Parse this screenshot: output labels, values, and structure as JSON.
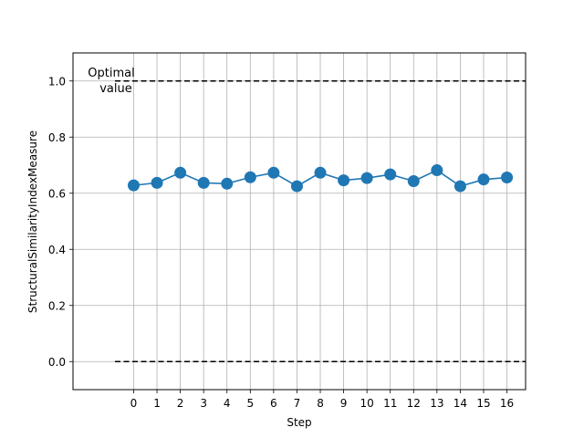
{
  "chart_data": {
    "type": "line",
    "title": "",
    "xlabel": "Step",
    "ylabel": "StructuralSimilarityIndexMeasure",
    "x": [
      0,
      1,
      2,
      3,
      4,
      5,
      6,
      7,
      8,
      9,
      10,
      11,
      12,
      13,
      14,
      15,
      16
    ],
    "series": [
      {
        "values": [
          0.628,
          0.637,
          0.673,
          0.637,
          0.634,
          0.657,
          0.673,
          0.625,
          0.673,
          0.646,
          0.654,
          0.667,
          0.643,
          0.682,
          0.625,
          0.649,
          0.656
        ],
        "color": "#1f77b4",
        "marker": "circle"
      }
    ],
    "xticks": [
      "0",
      "1",
      "2",
      "3",
      "4",
      "5",
      "6",
      "7",
      "8",
      "9",
      "10",
      "11",
      "12",
      "13",
      "14",
      "15",
      "16"
    ],
    "yticks": [
      "0.0",
      "0.2",
      "0.4",
      "0.6",
      "0.8",
      "1.0"
    ],
    "ylim": [
      -0.1,
      1.1
    ],
    "xlim": [
      -2.6,
      16.8
    ],
    "reference_lines": [
      {
        "y": 1.0,
        "style": "dashed",
        "color": "#000000",
        "x_from": -0.8,
        "x_to": 16.8
      },
      {
        "y": 0.0,
        "style": "dashed",
        "color": "#000000",
        "x_from": -0.8,
        "x_to": 16.8
      }
    ],
    "annotation": {
      "line1": "Optimal",
      "line2": "value"
    },
    "grid": true,
    "legend": "none"
  }
}
